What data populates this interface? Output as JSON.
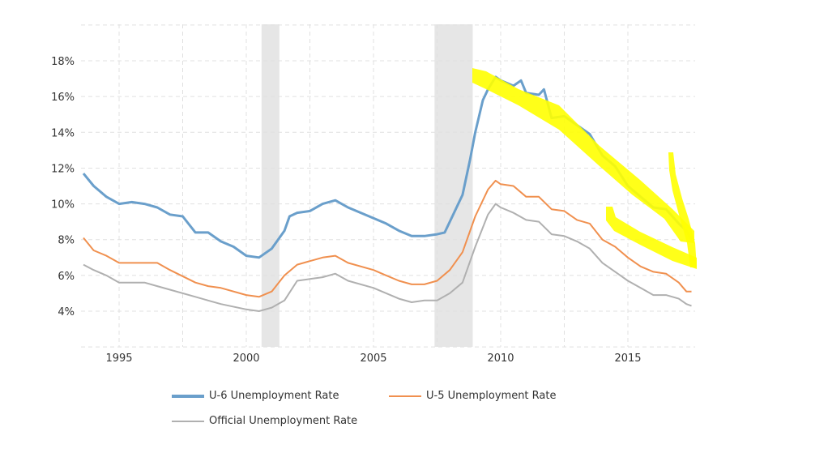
{
  "chart_data": {
    "type": "line",
    "title": "",
    "xlabel": "",
    "ylabel": "",
    "xlim": [
      1993.6,
      2017.6
    ],
    "ylim": [
      2,
      20
    ],
    "y_ticks": [
      4,
      6,
      8,
      10,
      12,
      14,
      16,
      18
    ],
    "y_tick_labels": [
      "4%",
      "6%",
      "8%",
      "10%",
      "12%",
      "14%",
      "16%",
      "18%"
    ],
    "x_ticks": [
      1995,
      2000,
      2005,
      2010,
      2015
    ],
    "x_tick_labels": [
      "1995",
      "2000",
      "2005",
      "2010",
      "2015"
    ],
    "grid": true,
    "legend_position": "bottom",
    "recessions": [
      [
        2000.6,
        2001.3
      ],
      [
        2007.4,
        2008.9
      ]
    ],
    "series": [
      {
        "name": "U-6 Unemployment Rate",
        "color": "#6a9fcb",
        "x": [
          1993.6,
          1994,
          1994.5,
          1995,
          1995.5,
          1996,
          1996.5,
          1997,
          1997.5,
          1998,
          1998.5,
          1999,
          1999.5,
          2000,
          2000.5,
          2001,
          2001.5,
          2001.7,
          2002,
          2002.5,
          2003,
          2003.5,
          2004,
          2004.5,
          2005,
          2005.5,
          2006,
          2006.5,
          2007,
          2007.5,
          2007.8,
          2008,
          2008.5,
          2008.8,
          2009,
          2009.3,
          2009.5,
          2009.8,
          2010,
          2010.5,
          2010.8,
          2011,
          2011.5,
          2011.7,
          2012,
          2012.5,
          2013,
          2013.5,
          2014,
          2014.5,
          2015,
          2015.5,
          2016,
          2016.5,
          2017,
          2017.3,
          2017.5
        ],
        "values": [
          11.7,
          11.0,
          10.4,
          10.0,
          10.1,
          10.0,
          9.8,
          9.4,
          9.3,
          8.4,
          8.4,
          7.9,
          7.6,
          7.1,
          7.0,
          7.5,
          8.5,
          9.3,
          9.5,
          9.6,
          10.0,
          10.2,
          9.8,
          9.5,
          9.2,
          8.9,
          8.5,
          8.2,
          8.2,
          8.3,
          8.4,
          9.0,
          10.5,
          12.5,
          14.0,
          15.8,
          16.4,
          17.1,
          16.9,
          16.6,
          16.9,
          16.2,
          16.1,
          16.4,
          14.8,
          14.9,
          14.4,
          13.9,
          12.7,
          12.1,
          11.0,
          10.4,
          9.8,
          9.7,
          8.9,
          8.5,
          8.0
        ]
      },
      {
        "name": "U-5 Unemployment Rate",
        "color": "#f0904f",
        "x": [
          1993.6,
          1994,
          1994.5,
          1995,
          1996,
          1996.5,
          1997,
          1998,
          1998.5,
          1999,
          2000,
          2000.5,
          2001,
          2001.5,
          2002,
          2002.5,
          2003,
          2003.5,
          2004,
          2005,
          2005.5,
          2006,
          2006.5,
          2007,
          2007.5,
          2008,
          2008.5,
          2009,
          2009.5,
          2009.8,
          2010,
          2010.5,
          2011,
          2011.5,
          2012,
          2012.5,
          2013,
          2013.5,
          2014,
          2014.5,
          2015,
          2015.5,
          2016,
          2016.5,
          2017,
          2017.3,
          2017.5
        ],
        "values": [
          8.1,
          7.4,
          7.1,
          6.7,
          6.7,
          6.7,
          6.3,
          5.6,
          5.4,
          5.3,
          4.9,
          4.8,
          5.1,
          6.0,
          6.6,
          6.8,
          7.0,
          7.1,
          6.7,
          6.3,
          6.0,
          5.7,
          5.5,
          5.5,
          5.7,
          6.3,
          7.3,
          9.3,
          10.8,
          11.3,
          11.1,
          11.0,
          10.4,
          10.4,
          9.7,
          9.6,
          9.1,
          8.9,
          8.0,
          7.6,
          7.0,
          6.5,
          6.2,
          6.1,
          5.6,
          5.1,
          5.1
        ]
      },
      {
        "name": "Official Unemployment Rate",
        "color": "#b0b0b0",
        "x": [
          1993.6,
          1994,
          1994.5,
          1995,
          1996,
          1996.5,
          1997,
          1998,
          1998.5,
          1999,
          2000,
          2000.5,
          2001,
          2001.5,
          2002,
          2002.5,
          2003,
          2003.5,
          2004,
          2005,
          2005.5,
          2006,
          2006.5,
          2007,
          2007.5,
          2008,
          2008.5,
          2009,
          2009.5,
          2009.8,
          2010,
          2010.5,
          2011,
          2011.5,
          2012,
          2012.5,
          2013,
          2013.5,
          2014,
          2014.5,
          2015,
          2015.5,
          2016,
          2016.5,
          2017,
          2017.3,
          2017.5
        ],
        "values": [
          6.6,
          6.3,
          6.0,
          5.6,
          5.6,
          5.4,
          5.2,
          4.8,
          4.6,
          4.4,
          4.1,
          4.0,
          4.2,
          4.6,
          5.7,
          5.8,
          5.9,
          6.1,
          5.7,
          5.3,
          5.0,
          4.7,
          4.5,
          4.6,
          4.6,
          5.0,
          5.6,
          7.6,
          9.4,
          10.0,
          9.8,
          9.5,
          9.1,
          9.0,
          8.3,
          8.2,
          7.9,
          7.5,
          6.7,
          6.2,
          5.7,
          5.3,
          4.9,
          4.9,
          4.7,
          4.4,
          4.3
        ]
      }
    ]
  }
}
